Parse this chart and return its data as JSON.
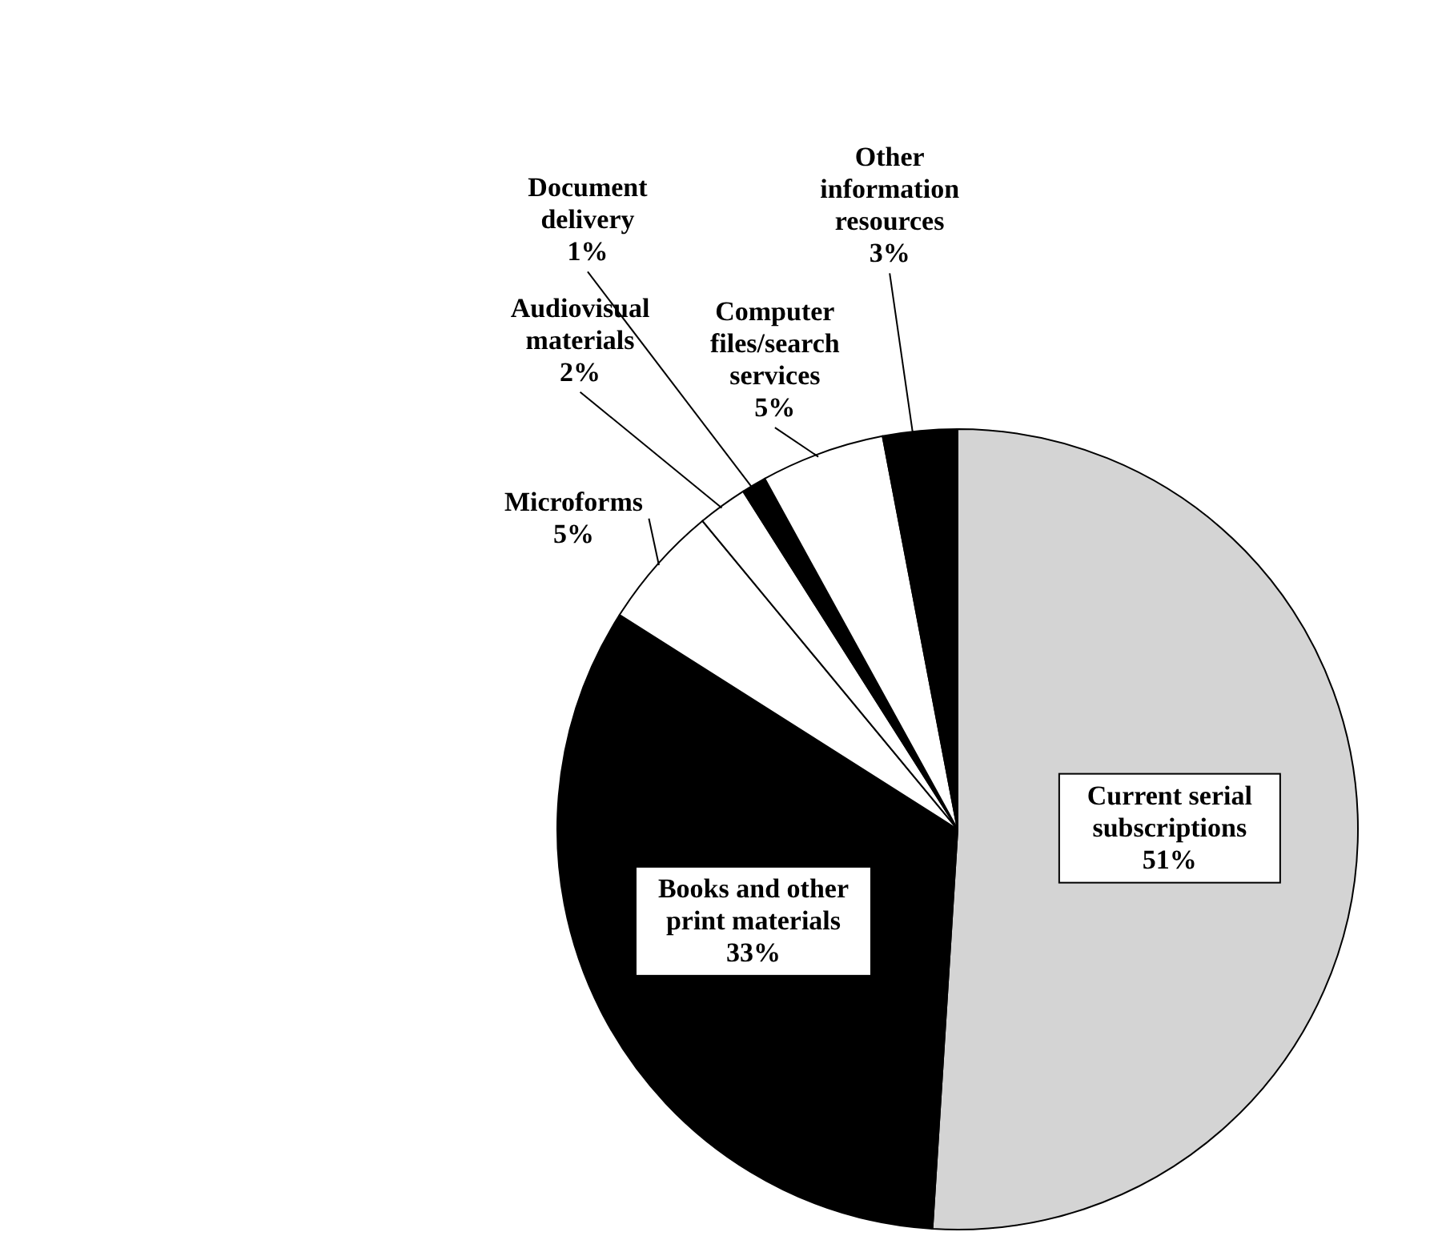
{
  "chart_data": {
    "type": "pie",
    "categories": [
      "Current serial subscriptions",
      "Books and other print materials",
      "Microforms",
      "Audiovisual materials",
      "Document delivery",
      "Computer files/search services",
      "Other information resources"
    ],
    "values": [
      51,
      33,
      5,
      2,
      1,
      5,
      3
    ],
    "value_labels": [
      "51%",
      "33%",
      "5%",
      "2%",
      "1%",
      "5%",
      "3%"
    ],
    "colors": [
      "#d4d4d4",
      "#000000",
      "#ffffff",
      "#ffffff",
      "#000000",
      "#ffffff",
      "#000000"
    ],
    "legend": false
  }
}
